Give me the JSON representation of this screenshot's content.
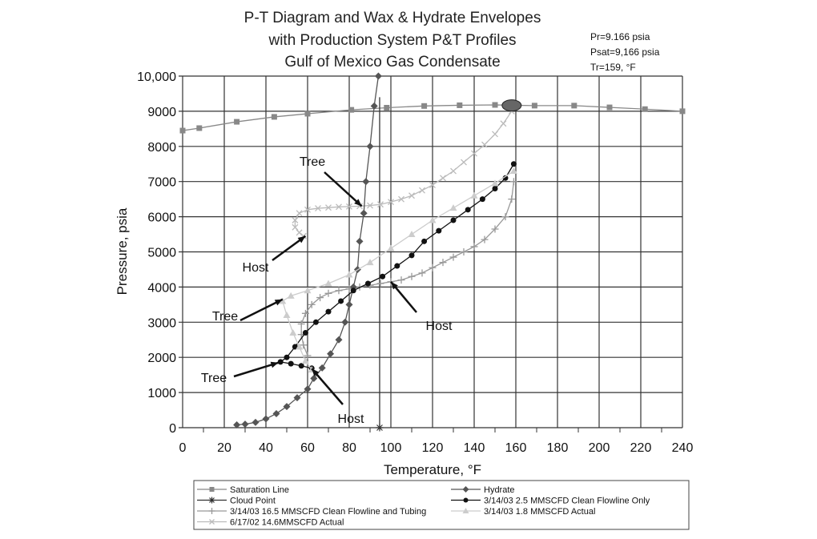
{
  "chart_data": {
    "type": "line",
    "title_lines": [
      "P-T Diagram and Wax & Hydrate Envelopes",
      "with Production System P&T Profiles",
      "Gulf of Mexico Gas Condensate"
    ],
    "annotations": [
      "Pr=9.166 psia",
      "Psat=9,166 psia",
      "Tr=159, °F"
    ],
    "xlabel": "Temperature, °F",
    "ylabel": "Pressure, psia",
    "xlim": [
      0,
      240
    ],
    "ylim": [
      0,
      10000
    ],
    "xticks": [
      "0",
      "20",
      "40",
      "60",
      "80",
      "100",
      "120",
      "140",
      "160",
      "180",
      "200",
      "220",
      "240"
    ],
    "yticks": [
      "0",
      "1000",
      "2000",
      "3000",
      "4000",
      "5000",
      "6000",
      "7000",
      "8000",
      "9000",
      "10,000"
    ],
    "grid": true,
    "legend_position": "bottom",
    "critical_point": {
      "x": 158,
      "y": 9166,
      "color": "#666666"
    },
    "callouts": [
      {
        "text": "Tree",
        "at": [
          86,
          6300
        ]
      },
      {
        "text": "Host",
        "at": [
          59,
          5450
        ]
      },
      {
        "text": "Tree",
        "at": [
          48,
          3650
        ]
      },
      {
        "text": "Tree",
        "at": [
          46,
          1850
        ]
      },
      {
        "text": "Host",
        "at": [
          100,
          4150
        ]
      },
      {
        "text": "Host",
        "at": [
          62,
          1680
        ]
      }
    ],
    "series": [
      {
        "name": "Saturation Line",
        "marker": "square",
        "color": "#888888",
        "x": [
          0,
          8,
          26,
          44,
          60,
          81,
          98,
          116,
          133,
          150,
          169,
          188,
          205,
          222,
          240
        ],
        "y": [
          8450,
          8520,
          8700,
          8840,
          8930,
          9040,
          9100,
          9150,
          9170,
          9180,
          9160,
          9160,
          9110,
          9060,
          9000
        ]
      },
      {
        "name": "Cloud Point",
        "marker": "star",
        "color": "#333333",
        "x": [
          94.6,
          94.6
        ],
        "y": [
          9400,
          0
        ]
      },
      {
        "name": "3/14/03 16.5 MMSCFD Clean Flowline and Tubing",
        "marker": "plus",
        "color": "#999999",
        "x": [
          159,
          158,
          155,
          150,
          145,
          140,
          135,
          130,
          125,
          120,
          115,
          110,
          105,
          100,
          95,
          90,
          85,
          80,
          75,
          70,
          66,
          62,
          59,
          57,
          57,
          58,
          60
        ],
        "y": [
          7000,
          6500,
          6000,
          5650,
          5350,
          5150,
          5000,
          4850,
          4700,
          4550,
          4400,
          4300,
          4200,
          4150,
          4100,
          4050,
          4000,
          3950,
          3900,
          3820,
          3700,
          3500,
          3250,
          2950,
          2650,
          2350,
          2050
        ]
      },
      {
        "name": "6/17/02 14.6MMSCFD Actual",
        "marker": "x",
        "color": "#bbbbbb",
        "x": [
          158,
          154,
          150,
          145,
          140,
          135,
          130,
          125,
          120,
          115,
          110,
          105,
          100,
          95,
          90,
          85,
          80,
          75,
          70,
          65,
          60,
          56,
          54,
          54,
          56,
          58
        ],
        "y": [
          9000,
          8650,
          8350,
          8050,
          7800,
          7550,
          7300,
          7100,
          6900,
          6750,
          6600,
          6500,
          6420,
          6350,
          6320,
          6300,
          6290,
          6280,
          6260,
          6240,
          6200,
          6100,
          5900,
          5700,
          5550,
          5450
        ]
      },
      {
        "name": "Hydrate",
        "marker": "diamond",
        "color": "#555555",
        "x": [
          26,
          30,
          35,
          40,
          45,
          50,
          55,
          60,
          63,
          67,
          71,
          75,
          78,
          80,
          82,
          84,
          85,
          87,
          88,
          90,
          92,
          94
        ],
        "y": [
          80,
          100,
          150,
          250,
          400,
          600,
          850,
          1100,
          1400,
          1700,
          2100,
          2500,
          3000,
          3500,
          4000,
          4500,
          5300,
          6100,
          7000,
          8000,
          9150,
          10000
        ]
      },
      {
        "name": "3/14/03 2.5 MMSCFD Clean Flowline Only",
        "marker": "circle",
        "color": "#111111",
        "x": [
          159,
          155,
          150,
          144,
          137,
          130,
          123,
          116,
          110,
          103,
          96,
          89,
          82,
          76,
          70,
          64,
          59,
          54,
          50,
          47,
          52,
          57,
          62
        ],
        "y": [
          7500,
          7100,
          6800,
          6500,
          6200,
          5900,
          5600,
          5300,
          4900,
          4600,
          4300,
          4100,
          3900,
          3600,
          3300,
          3000,
          2700,
          2300,
          2000,
          1870,
          1820,
          1760,
          1690
        ]
      },
      {
        "name": "3/14/03 1.8 MMSCFD Actual",
        "marker": "triangle",
        "color": "#cccccc",
        "x": [
          159,
          150,
          140,
          130,
          120,
          110,
          100,
          90,
          80,
          70,
          60,
          52,
          48,
          50,
          53,
          56,
          59,
          62
        ],
        "y": [
          7300,
          6950,
          6600,
          6250,
          5900,
          5500,
          5100,
          4700,
          4350,
          4100,
          3900,
          3750,
          3600,
          3200,
          2700,
          2300,
          1900,
          1650
        ]
      }
    ]
  }
}
